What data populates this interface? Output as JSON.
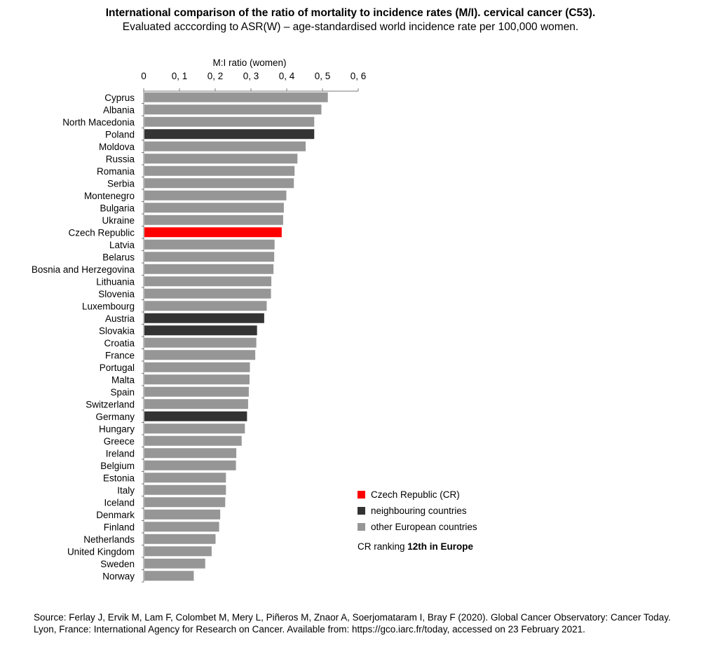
{
  "title": "International comparison of the ratio of mortality to incidence rates (M/I). cervical cancer (C53).",
  "subtitle": "Evaluated acccording to ASR(W) – age-standardised world incidence rate per 100,000 women.",
  "chart_data": {
    "type": "bar",
    "orientation": "horizontal",
    "xlabel": "M:I ratio (women)",
    "xlim": [
      0,
      0.6
    ],
    "xticks": [
      0,
      0.1,
      0.2,
      0.3,
      0.4,
      0.5,
      0.6
    ],
    "xtick_labels": [
      "0",
      "0, 1",
      "0, 2",
      "0, 3",
      "0, 4",
      "0, 5",
      "0, 6"
    ],
    "grid": false,
    "legend_position": "bottom-right",
    "colors": {
      "czech": "#ff0000",
      "neighbour": "#333333",
      "other": "#969696"
    },
    "categories": [
      "Cyprus",
      "Albania",
      "North Macedonia",
      "Poland",
      "Moldova",
      "Russia",
      "Romania",
      "Serbia",
      "Montenegro",
      "Bulgaria",
      "Ukraine",
      "Czech Republic",
      "Latvia",
      "Belarus",
      "Bosnia and Herzegovina",
      "Lithuania",
      "Slovenia",
      "Luxembourg",
      "Austria",
      "Slovakia",
      "Croatia",
      "France",
      "Portugal",
      "Malta",
      "Spain",
      "Switzerland",
      "Germany",
      "Hungary",
      "Greece",
      "Ireland",
      "Belgium",
      "Estonia",
      "Italy",
      "Iceland",
      "Denmark",
      "Finland",
      "Netherlands",
      "United Kingdom",
      "Sweden",
      "Norway"
    ],
    "values": [
      0.515,
      0.497,
      0.477,
      0.477,
      0.453,
      0.43,
      0.422,
      0.42,
      0.399,
      0.392,
      0.39,
      0.386,
      0.366,
      0.365,
      0.363,
      0.357,
      0.356,
      0.344,
      0.337,
      0.317,
      0.315,
      0.312,
      0.297,
      0.296,
      0.294,
      0.292,
      0.289,
      0.283,
      0.274,
      0.259,
      0.258,
      0.23,
      0.23,
      0.228,
      0.214,
      0.211,
      0.201,
      0.19,
      0.172,
      0.14
    ],
    "groups": [
      "other",
      "other",
      "other",
      "neighbour",
      "other",
      "other",
      "other",
      "other",
      "other",
      "other",
      "other",
      "czech",
      "other",
      "other",
      "other",
      "other",
      "other",
      "other",
      "neighbour",
      "neighbour",
      "other",
      "other",
      "other",
      "other",
      "other",
      "other",
      "neighbour",
      "other",
      "other",
      "other",
      "other",
      "other",
      "other",
      "other",
      "other",
      "other",
      "other",
      "other",
      "other",
      "other"
    ]
  },
  "legend": {
    "items": [
      {
        "label": "Czech Republic (CR)",
        "group": "czech"
      },
      {
        "label": "neighbouring countries",
        "group": "neighbour"
      },
      {
        "label": "other European countries",
        "group": "other"
      }
    ],
    "ranking_prefix": "CR ranking ",
    "ranking_bold": "12th in Europe"
  },
  "source": "Source: Ferlay J, Ervik M, Lam F, Colombet M, Mery L, Piñeros M, Znaor A, Soerjomataram I, Bray F (2020). Global Cancer Observatory: Cancer Today. Lyon, France: International Agency for Research on Cancer. Available from: https://gco.iarc.fr/today, accessed on 23 February 2021."
}
